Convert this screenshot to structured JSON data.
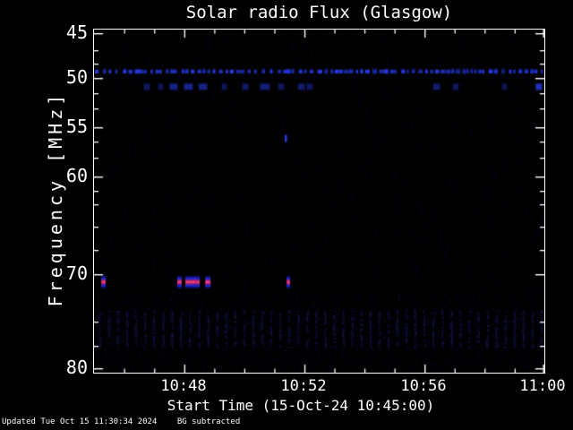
{
  "chart_data": {
    "type": "heatmap",
    "title": "Solar radio Flux (Glasgow)",
    "xlabel": "Start Time (15-Oct-24 10:45:00)",
    "ylabel": "Frequency [MHz]",
    "x_tick_labels": [
      "10:48",
      "10:52",
      "10:56",
      "11:00"
    ],
    "x_major_tick_minutes": [
      3,
      7,
      11,
      15
    ],
    "x_minor_tick_minutes": [
      1,
      2,
      4,
      5,
      6,
      8,
      9,
      10,
      12,
      13,
      14
    ],
    "x_range_minutes": [
      0,
      15
    ],
    "x_start_time": "10:45:00",
    "x_end_time": "11:00:00",
    "y_tick_labels": [
      "45",
      "50",
      "55",
      "60",
      "70",
      "80"
    ],
    "y_tick_values_mhz": [
      45,
      50,
      55,
      60,
      70,
      80
    ],
    "y_range_mhz": [
      45,
      80
    ],
    "y_axis_inverted": true,
    "background_color": "#000000",
    "frame_color": "#ffffff",
    "noise_color": "#16164f",
    "features": {
      "persistent_dotted_line": {
        "freq_mhz": 49.0,
        "t_start_min": 0,
        "t_end_min": 15,
        "style": "dotted",
        "color_rgb": [
          40,
          60,
          240
        ]
      },
      "scattered_dashes_51mhz": {
        "freq_mhz": 50.6,
        "color_rgb": [
          35,
          55,
          210
        ],
        "events": [
          {
            "t": 1.67,
            "w": 6,
            "b": 0.35
          },
          {
            "t": 2.15,
            "w": 5,
            "b": 0.3
          },
          {
            "t": 2.53,
            "w": 8,
            "b": 0.5
          },
          {
            "t": 3.01,
            "w": 9,
            "b": 0.55
          },
          {
            "t": 3.49,
            "w": 9,
            "b": 0.5
          },
          {
            "t": 4.26,
            "w": 5,
            "b": 0.3
          },
          {
            "t": 4.95,
            "w": 6,
            "b": 0.4
          },
          {
            "t": 5.54,
            "w": 10,
            "b": 0.45
          },
          {
            "t": 6.14,
            "w": 6,
            "b": 0.35
          },
          {
            "t": 6.8,
            "w": 7,
            "b": 0.4
          },
          {
            "t": 7.09,
            "w": 6,
            "b": 0.35
          },
          {
            "t": 11.3,
            "w": 7,
            "b": 0.4
          },
          {
            "t": 11.95,
            "w": 6,
            "b": 0.35
          },
          {
            "t": 13.59,
            "w": 5,
            "b": 0.3
          },
          {
            "t": 14.72,
            "w": 6,
            "b": 0.85
          }
        ]
      },
      "bursts_71mhz": {
        "freq_mhz": 71.0,
        "edge_color": "#10106e",
        "mid_color": "#2226cc",
        "core_color": "#c02060",
        "hot_color": "#e04585",
        "events": [
          {
            "t": 0.24,
            "w": 5
          },
          {
            "t": 2.77,
            "w": 5
          },
          {
            "t": 3.04,
            "w": 12
          },
          {
            "t": 3.4,
            "w": 4
          },
          {
            "t": 3.7,
            "w": 6
          },
          {
            "t": 6.41,
            "w": 4
          }
        ]
      },
      "dash_56mhz": {
        "freq_mhz": 56.0,
        "t": 6.35,
        "color": "#2a3ae8"
      },
      "striped_band": {
        "freq_top_mhz": 74.0,
        "freq_bottom_mhz": 77.8,
        "period_min": 0.3,
        "color_rgb": [
          32,
          32,
          130
        ]
      }
    }
  },
  "footer": {
    "updated": "Updated Tue Oct 15 11:30:34 2024",
    "bg_note": "BG subtracted"
  }
}
